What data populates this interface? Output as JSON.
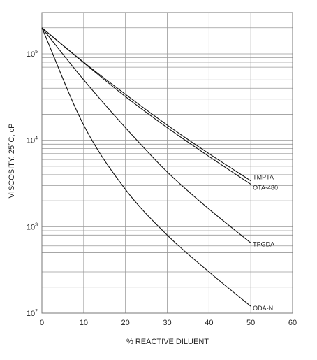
{
  "chart_data": {
    "type": "line",
    "xlabel": "% REACTIVE DILUENT",
    "ylabel": "VISCOSITY, 25°C, cP",
    "xlim": [
      0,
      60
    ],
    "ylim": [
      100,
      300000
    ],
    "yscale": "log",
    "grid": true,
    "legend": "labels at line ends",
    "x_ticks": [
      "0",
      "10",
      "20",
      "30",
      "40",
      "50",
      "60"
    ],
    "y_ticks": [
      {
        "value": 100,
        "base": "10",
        "exp": "2"
      },
      {
        "value": 1000,
        "base": "10",
        "exp": "3"
      },
      {
        "value": 10000,
        "base": "10",
        "exp": "4"
      },
      {
        "value": 100000,
        "base": "10",
        "exp": "5"
      }
    ],
    "series": [
      {
        "name": "TMPTA",
        "x": [
          0,
          10,
          20,
          30,
          40,
          50
        ],
        "y": [
          200000,
          80000,
          34000,
          15000,
          7000,
          3400
        ]
      },
      {
        "name": "OTA-480",
        "x": [
          0,
          10,
          20,
          30,
          40,
          50
        ],
        "y": [
          200000,
          79000,
          32000,
          14000,
          6500,
          3100
        ]
      },
      {
        "name": "TPGDA",
        "x": [
          0,
          10,
          20,
          30,
          40,
          50
        ],
        "y": [
          200000,
          50000,
          14000,
          4300,
          1600,
          650
        ]
      },
      {
        "name": "ODA-N",
        "x": [
          0,
          10,
          20,
          30,
          40,
          50
        ],
        "y": [
          200000,
          15000,
          2700,
          800,
          300,
          120
        ]
      }
    ]
  }
}
